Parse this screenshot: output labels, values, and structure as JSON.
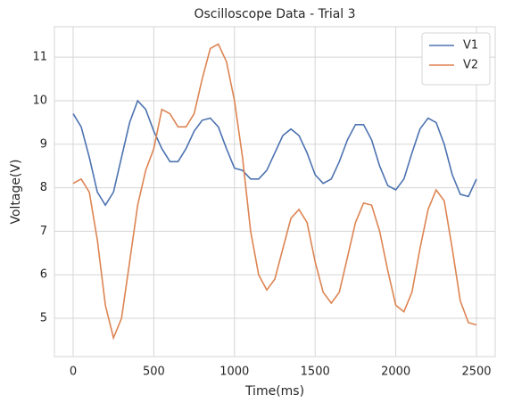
{
  "chart_data": {
    "type": "line",
    "title": "Oscilloscope Data - Trial 3",
    "x_label": "Time(ms)",
    "y_label": "Voltage(V)",
    "x": [
      0,
      50,
      100,
      150,
      200,
      250,
      300,
      350,
      400,
      450,
      500,
      550,
      600,
      650,
      700,
      750,
      800,
      850,
      900,
      950,
      1000,
      1050,
      1100,
      1150,
      1200,
      1250,
      1300,
      1350,
      1400,
      1450,
      1500,
      1550,
      1600,
      1650,
      1700,
      1750,
      1800,
      1850,
      1900,
      1950,
      2000,
      2050,
      2100,
      2150,
      2200,
      2250,
      2300,
      2350,
      2400,
      2450,
      2500
    ],
    "series": [
      {
        "name": "V1",
        "color": "#4c72b0",
        "values": [
          9.7,
          9.4,
          8.7,
          7.9,
          7.6,
          7.9,
          8.7,
          9.5,
          10.0,
          9.8,
          9.3,
          8.9,
          8.6,
          8.6,
          8.9,
          9.3,
          9.55,
          9.6,
          9.4,
          8.9,
          8.45,
          8.4,
          8.2,
          8.2,
          8.4,
          8.8,
          9.2,
          9.35,
          9.2,
          8.8,
          8.3,
          8.1,
          8.2,
          8.6,
          9.1,
          9.45,
          9.45,
          9.1,
          8.5,
          8.05,
          7.95,
          8.2,
          8.8,
          9.35,
          9.6,
          9.5,
          9.0,
          8.3,
          7.85,
          7.8,
          8.2
        ]
      },
      {
        "name": "V2",
        "color": "#dd8452",
        "values": [
          8.1,
          8.2,
          7.9,
          6.8,
          5.3,
          4.55,
          5.0,
          6.3,
          7.6,
          8.4,
          8.9,
          9.8,
          9.7,
          9.4,
          9.4,
          9.7,
          10.5,
          11.2,
          11.3,
          10.9,
          10.0,
          8.7,
          7.0,
          6.0,
          5.65,
          5.9,
          6.6,
          7.3,
          7.5,
          7.2,
          6.3,
          5.6,
          5.35,
          5.6,
          6.4,
          7.2,
          7.65,
          7.6,
          7.0,
          6.1,
          5.3,
          5.15,
          5.6,
          6.6,
          7.5,
          7.95,
          7.7,
          6.6,
          5.4,
          4.9,
          4.85
        ]
      }
    ],
    "xlim": [
      -116,
      2616
    ],
    "ylim": [
      4.12,
      11.7
    ],
    "xticks": [
      0,
      500,
      1000,
      1500,
      2000,
      2500
    ],
    "yticks": [
      5,
      6,
      7,
      8,
      9,
      10,
      11
    ],
    "grid": true,
    "legend": "upper right"
  }
}
